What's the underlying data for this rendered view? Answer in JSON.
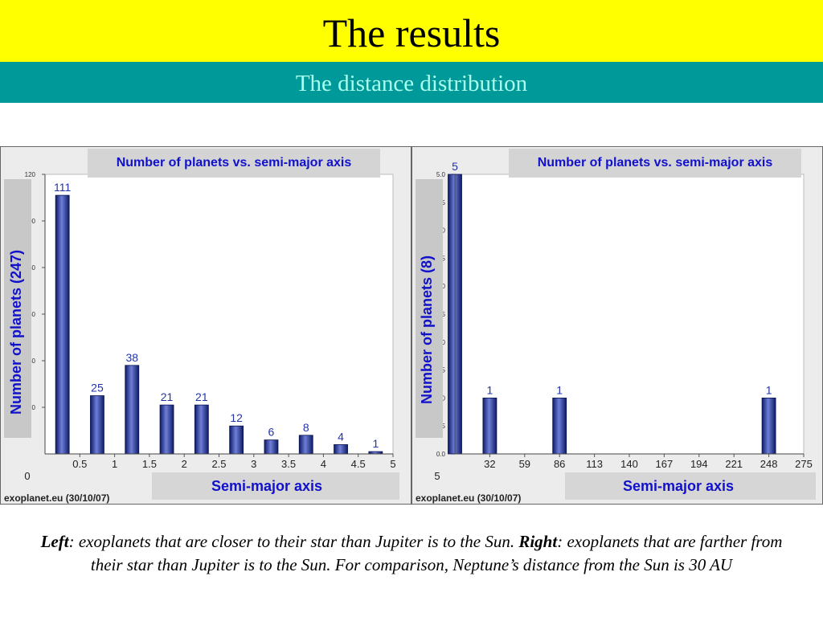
{
  "slide": {
    "title": "The results",
    "subtitle": "The distance distribution",
    "caption": {
      "left_bold": "Left",
      "left_text": ": exoplanets that are closer to their star than Jupiter is to the Sun.",
      "right_bold": "Right",
      "right_text": ": exoplanets that are farther from their star than Jupiter is to the Sun. For comparison, Neptune’s distance from the Sun is 30 AU"
    }
  },
  "colors": {
    "title_band": "#ffff00",
    "subtitle_band": "#009999",
    "bar": "#2a3a9a",
    "label_text": "#1111cc"
  },
  "chart_data": [
    {
      "type": "bar",
      "title": "Number of planets vs. semi-major axis",
      "ylabel": "Number of planets (247)",
      "xlabel": "Semi-major axis",
      "source": "exoplanet.eu (30/10/07)",
      "bar_labels": [
        "111",
        "25",
        "38",
        "21",
        "21",
        "12",
        "6",
        "8",
        "4",
        "1"
      ],
      "categories": [
        0.25,
        0.75,
        1.25,
        1.75,
        2.25,
        2.75,
        3.25,
        3.75,
        4.25,
        4.75
      ],
      "values": [
        111,
        25,
        38,
        21,
        21,
        12,
        6,
        8,
        4,
        1
      ],
      "x_ticks": [
        "0.5",
        "1",
        "1.5",
        "2",
        "2.5",
        "3",
        "3.5",
        "4",
        "4.5",
        "5"
      ],
      "x_origin_label": "0",
      "y_ticks": [
        "120",
        "100",
        "80",
        "60",
        "40",
        "20"
      ],
      "ylim": [
        0,
        120
      ],
      "xlim": [
        0,
        5
      ]
    },
    {
      "type": "bar",
      "title": "Number of planets vs. semi-major axis",
      "ylabel": "Number of planets (8)",
      "xlabel": "Semi-major axis",
      "source": "exoplanet.eu (30/10/07)",
      "bar_labels": [
        "5",
        "1",
        "1",
        "1"
      ],
      "categories": [
        5,
        32,
        86,
        248
      ],
      "values": [
        5,
        1,
        1,
        1
      ],
      "x_ticks": [
        "32",
        "59",
        "86",
        "113",
        "140",
        "167",
        "194",
        "221",
        "248",
        "275"
      ],
      "x_origin_label": "5",
      "y_ticks": [
        "5.0",
        "4.5",
        "4.0",
        "3.5",
        "3.0",
        "2.5",
        "2.0",
        "1.5",
        "1.0",
        "0.5",
        "0.0"
      ],
      "ylim": [
        0,
        5
      ],
      "xlim": [
        5,
        275
      ]
    }
  ]
}
